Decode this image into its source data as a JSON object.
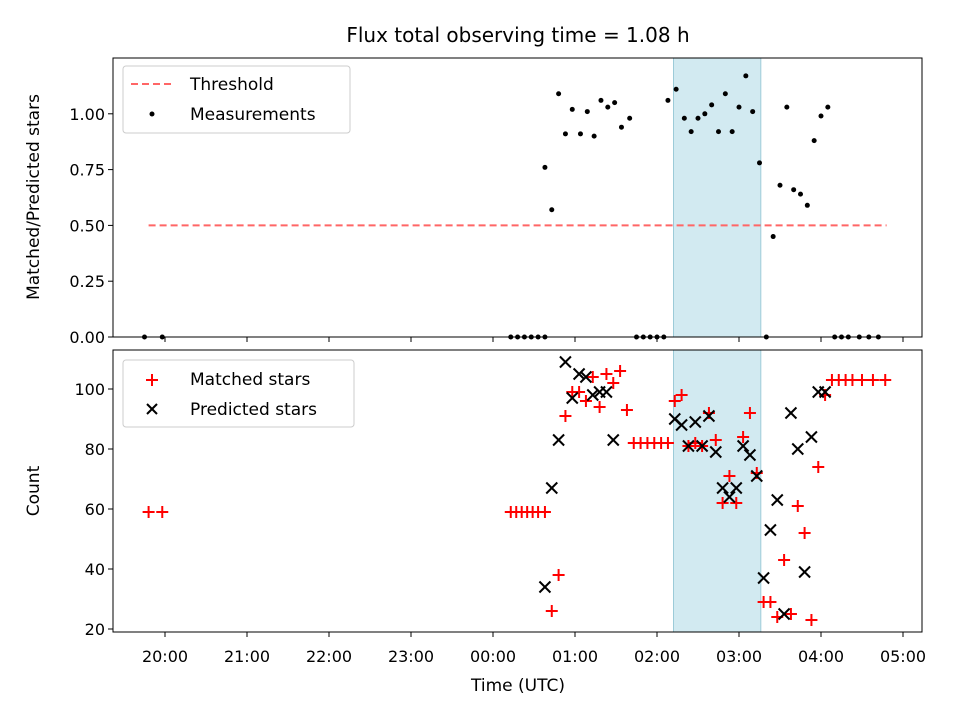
{
  "chart_data": [
    {
      "type": "scatter",
      "title": "Flux total observing time = 1.08 h",
      "xlabel": "",
      "ylabel": "Matched/Predicted stars",
      "ylim": [
        0,
        1.25
      ],
      "yticks": [
        "0.00",
        "0.25",
        "0.50",
        "0.75",
        "1.00"
      ],
      "legend_position": "upper-left",
      "shaded_region": {
        "x0": "02:12",
        "x1": "03:16",
        "color": "#add8e6"
      },
      "threshold": {
        "name": "Threshold",
        "y": 0.5,
        "x0": "19:48",
        "x1": "04:48",
        "color": "#ff6666",
        "style": "dashed"
      },
      "series": [
        {
          "name": "Measurements",
          "marker": "dot",
          "color": "#000000",
          "points": [
            [
              "19:45",
              0.0
            ],
            [
              "19:58",
              0.0
            ],
            [
              "00:13",
              0.0
            ],
            [
              "00:18",
              0.0
            ],
            [
              "00:23",
              0.0
            ],
            [
              "00:28",
              0.0
            ],
            [
              "00:33",
              0.0
            ],
            [
              "00:38",
              0.0
            ],
            [
              "00:38",
              0.76
            ],
            [
              "00:43",
              0.57
            ],
            [
              "00:48",
              1.09
            ],
            [
              "00:53",
              0.91
            ],
            [
              "00:58",
              1.02
            ],
            [
              "01:04",
              0.91
            ],
            [
              "01:09",
              1.01
            ],
            [
              "01:14",
              0.9
            ],
            [
              "01:19",
              1.06
            ],
            [
              "01:24",
              1.03
            ],
            [
              "01:29",
              1.05
            ],
            [
              "01:34",
              0.94
            ],
            [
              "01:40",
              0.98
            ],
            [
              "01:45",
              0.0
            ],
            [
              "01:50",
              0.0
            ],
            [
              "01:55",
              0.0
            ],
            [
              "02:00",
              0.0
            ],
            [
              "02:05",
              0.0
            ],
            [
              "02:08",
              1.06
            ],
            [
              "02:14",
              1.11
            ],
            [
              "02:20",
              0.98
            ],
            [
              "02:25",
              0.92
            ],
            [
              "02:30",
              0.98
            ],
            [
              "02:35",
              1.0
            ],
            [
              "02:40",
              1.04
            ],
            [
              "02:45",
              0.92
            ],
            [
              "02:50",
              1.09
            ],
            [
              "02:55",
              0.92
            ],
            [
              "03:00",
              1.03
            ],
            [
              "03:05",
              1.17
            ],
            [
              "03:10",
              1.01
            ],
            [
              "03:15",
              0.78
            ],
            [
              "03:20",
              0.0
            ],
            [
              "03:25",
              0.45
            ],
            [
              "03:30",
              0.68
            ],
            [
              "03:35",
              1.03
            ],
            [
              "03:40",
              0.66
            ],
            [
              "03:45",
              0.64
            ],
            [
              "03:50",
              0.59
            ],
            [
              "03:55",
              0.88
            ],
            [
              "04:00",
              0.99
            ],
            [
              "04:05",
              1.03
            ],
            [
              "04:10",
              0.0
            ],
            [
              "04:15",
              0.0
            ],
            [
              "04:20",
              0.0
            ],
            [
              "04:28",
              0.0
            ],
            [
              "04:35",
              0.0
            ],
            [
              "04:42",
              0.0
            ]
          ]
        }
      ]
    },
    {
      "type": "scatter",
      "title": "",
      "xlabel": "Time (UTC)",
      "ylabel": "Count",
      "ylim": [
        19,
        113
      ],
      "yticks": [
        "20",
        "40",
        "60",
        "80",
        "100"
      ],
      "xticks": [
        "20:00",
        "21:00",
        "22:00",
        "23:00",
        "00:00",
        "01:00",
        "02:00",
        "03:00",
        "04:00",
        "05:00"
      ],
      "legend_position": "upper-left",
      "shaded_region": {
        "x0": "02:12",
        "x1": "03:16",
        "color": "#add8e6"
      },
      "series": [
        {
          "name": "Matched stars",
          "marker": "plus",
          "color": "#ff0000",
          "points": [
            [
              "19:48",
              59
            ],
            [
              "19:58",
              59
            ],
            [
              "00:13",
              59
            ],
            [
              "00:17",
              59
            ],
            [
              "00:21",
              59
            ],
            [
              "00:25",
              59
            ],
            [
              "00:29",
              59
            ],
            [
              "00:33",
              59
            ],
            [
              "00:38",
              59
            ],
            [
              "00:43",
              26
            ],
            [
              "00:48",
              38
            ],
            [
              "00:53",
              91
            ],
            [
              "00:58",
              99
            ],
            [
              "01:03",
              99
            ],
            [
              "01:08",
              96
            ],
            [
              "01:13",
              104
            ],
            [
              "01:18",
              94
            ],
            [
              "01:23",
              105
            ],
            [
              "01:28",
              102
            ],
            [
              "01:33",
              106
            ],
            [
              "01:38",
              93
            ],
            [
              "01:43",
              82
            ],
            [
              "01:48",
              82
            ],
            [
              "01:53",
              82
            ],
            [
              "01:58",
              82
            ],
            [
              "02:03",
              82
            ],
            [
              "02:08",
              82
            ],
            [
              "02:13",
              96
            ],
            [
              "02:18",
              98
            ],
            [
              "02:23",
              81
            ],
            [
              "02:28",
              82
            ],
            [
              "02:33",
              81
            ],
            [
              "02:38",
              92
            ],
            [
              "02:43",
              83
            ],
            [
              "02:48",
              62
            ],
            [
              "02:53",
              71
            ],
            [
              "02:58",
              62
            ],
            [
              "03:03",
              84
            ],
            [
              "03:08",
              92
            ],
            [
              "03:13",
              72
            ],
            [
              "03:18",
              29
            ],
            [
              "03:23",
              29
            ],
            [
              "03:28",
              24
            ],
            [
              "03:33",
              43
            ],
            [
              "03:38",
              25
            ],
            [
              "03:43",
              61
            ],
            [
              "03:48",
              52
            ],
            [
              "03:53",
              23
            ],
            [
              "03:58",
              74
            ],
            [
              "04:03",
              98
            ],
            [
              "04:08",
              103
            ],
            [
              "04:13",
              103
            ],
            [
              "04:18",
              103
            ],
            [
              "04:23",
              103
            ],
            [
              "04:30",
              103
            ],
            [
              "04:38",
              103
            ],
            [
              "04:47",
              103
            ]
          ]
        },
        {
          "name": "Predicted stars",
          "marker": "x",
          "color": "#000000",
          "points": [
            [
              "00:38",
              34
            ],
            [
              "00:43",
              67
            ],
            [
              "00:48",
              83
            ],
            [
              "00:53",
              109
            ],
            [
              "00:58",
              97
            ],
            [
              "01:03",
              105
            ],
            [
              "01:08",
              104
            ],
            [
              "01:13",
              98
            ],
            [
              "01:18",
              99
            ],
            [
              "01:23",
              99
            ],
            [
              "01:28",
              83
            ],
            [
              "02:13",
              90
            ],
            [
              "02:18",
              88
            ],
            [
              "02:23",
              81
            ],
            [
              "02:28",
              89
            ],
            [
              "02:33",
              81
            ],
            [
              "02:38",
              91
            ],
            [
              "02:43",
              79
            ],
            [
              "02:48",
              67
            ],
            [
              "02:53",
              64
            ],
            [
              "02:58",
              67
            ],
            [
              "03:03",
              81
            ],
            [
              "03:08",
              78
            ],
            [
              "03:13",
              71
            ],
            [
              "03:18",
              37
            ],
            [
              "03:23",
              53
            ],
            [
              "03:28",
              63
            ],
            [
              "03:33",
              25
            ],
            [
              "03:38",
              92
            ],
            [
              "03:43",
              80
            ],
            [
              "03:48",
              39
            ],
            [
              "03:53",
              84
            ],
            [
              "03:58",
              99
            ],
            [
              "04:03",
              99
            ]
          ]
        }
      ]
    }
  ]
}
